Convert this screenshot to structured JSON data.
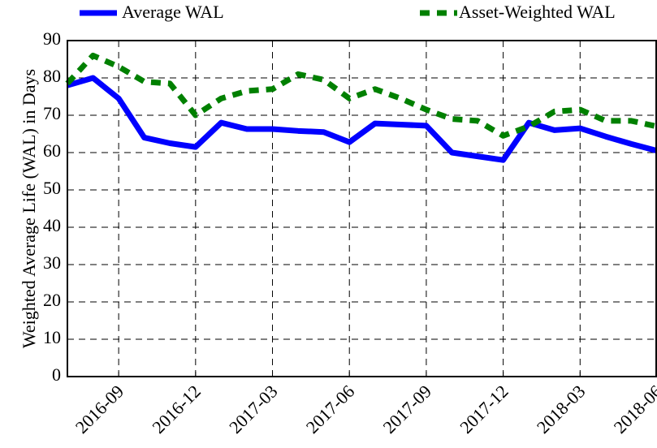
{
  "chart_data": {
    "type": "line",
    "ylabel": "Weighted Average Life (WAL) in Days",
    "categories": [
      null,
      null,
      "2016-09",
      null,
      null,
      "2016-12",
      null,
      null,
      "2017-03",
      null,
      null,
      "2017-06",
      null,
      null,
      "2017-09",
      null,
      null,
      "2017-12",
      null,
      null,
      "2018-03",
      null,
      null,
      "2018-06"
    ],
    "series": [
      {
        "name": "Average WAL",
        "color": "#0000ff",
        "style": "solid",
        "values": [
          78,
          80,
          74.5,
          64,
          62.5,
          61.5,
          68,
          66.3,
          66.3,
          65.8,
          65.5,
          62.8,
          67.8,
          67.5,
          67.2,
          60,
          59,
          58,
          68,
          66,
          66.5,
          64.3,
          62.3,
          60.5
        ]
      },
      {
        "name": "Asset-Weighted WAL",
        "color": "#008000",
        "style": "dashed",
        "values": [
          78.5,
          86,
          83,
          79,
          78.5,
          70,
          74.5,
          76.5,
          77,
          81,
          79.5,
          74.5,
          77,
          74.5,
          71.5,
          69,
          68.5,
          64.5,
          67,
          71,
          71.5,
          68.5,
          68.5,
          67
        ]
      }
    ],
    "ylim": [
      0,
      90
    ],
    "yticks": [
      0,
      10,
      20,
      30,
      40,
      50,
      60,
      70,
      80,
      90
    ],
    "grid": true
  }
}
